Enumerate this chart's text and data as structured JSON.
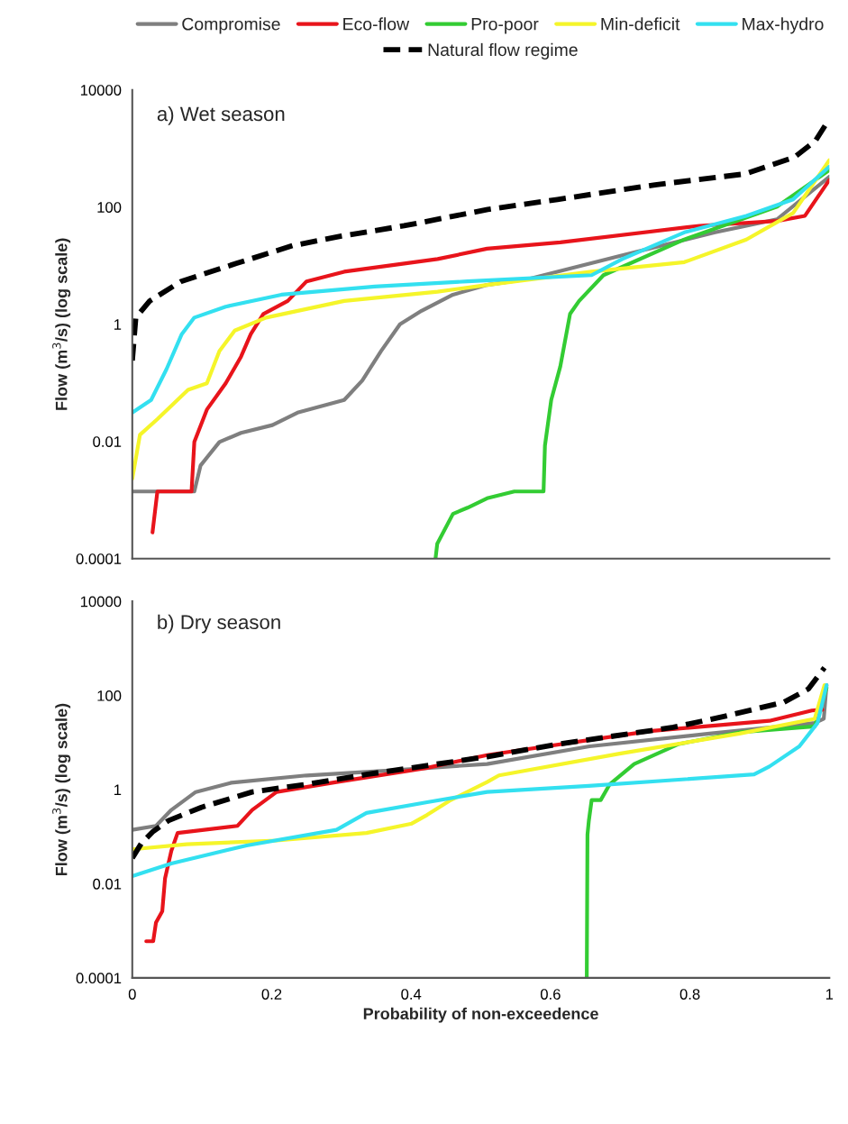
{
  "chart_data": [
    {
      "type": "line",
      "ylabel": "Flow (m$^{3}$/s) (log scale)",
      "annotations": [
        "a) Wet season"
      ],
      "log": "y",
      "xlim": [
        0,
        1
      ],
      "xticks": [
        0,
        0.2,
        0.4,
        0.6,
        0.8,
        1
      ],
      "ylim": [
        0.0001,
        10000
      ],
      "yticks": [
        0.0001,
        0.01,
        1,
        100,
        10000
      ],
      "tick_labels": "y",
      "legend": "top",
      "grid": false,
      "series": [
        {
          "name": "Compromise",
          "color": "#7f7f7f",
          "x": [
            0,
            0.089,
            0.098,
            0.125,
            0.156,
            0.201,
            0.237,
            0.304,
            0.33,
            0.357,
            0.384,
            0.415,
            0.46,
            0.509,
            0.57,
            0.703,
            0.836,
            0.925,
            1.0
          ],
          "values": [
            0.0014,
            0.0014,
            0.0039,
            0.0098,
            0.014,
            0.019,
            0.031,
            0.051,
            0.11,
            0.35,
            1.0,
            1.7,
            3.2,
            4.7,
            6.0,
            15,
            37,
            62,
            330
          ]
        },
        {
          "name": "Eco-flow",
          "color": "#e8141b",
          "x": [
            0.029,
            0.036,
            0.085,
            0.089,
            0.107,
            0.134,
            0.156,
            0.17,
            0.188,
            0.223,
            0.25,
            0.304,
            0.438,
            0.509,
            0.614,
            0.814,
            0.925,
            0.965,
            1.0
          ],
          "values": [
            0.00028,
            0.0014,
            0.0014,
            0.0098,
            0.035,
            0.098,
            0.28,
            0.68,
            1.5,
            2.5,
            5.4,
            7.9,
            13,
            19.5,
            25,
            48,
            58,
            71,
            290
          ]
        },
        {
          "name": "Pro-poor",
          "color": "#33cc33",
          "x": [
            0.435,
            0.4375,
            0.46,
            0.481,
            0.509,
            0.548,
            0.59,
            0.592,
            0.601,
            0.614,
            0.628,
            0.641,
            0.676,
            0.792,
            0.925,
            1.0
          ],
          "values": [
            0.0001,
            0.00018,
            0.00058,
            0.00074,
            0.00107,
            0.0014,
            0.0014,
            0.0085,
            0.051,
            0.19,
            1.5,
            2.5,
            6.9,
            28,
            102,
            430
          ]
        },
        {
          "name": "Min-deficit",
          "color": "#f5f52a",
          "x": [
            0,
            0.011,
            0.036,
            0.08,
            0.107,
            0.125,
            0.147,
            0.192,
            0.304,
            0.438,
            0.509,
            0.659,
            0.792,
            0.881,
            0.948,
            1.0
          ],
          "values": [
            0.0023,
            0.013,
            0.024,
            0.076,
            0.098,
            0.35,
            0.78,
            1.3,
            2.5,
            3.6,
            4.7,
            7.9,
            11.5,
            28,
            79,
            630
          ]
        },
        {
          "name": "Max-hydro",
          "color": "#33e0f0",
          "x": [
            0,
            0.027,
            0.049,
            0.071,
            0.089,
            0.134,
            0.214,
            0.348,
            0.481,
            0.659,
            0.703,
            0.792,
            0.881,
            0.948,
            1.0
          ],
          "values": [
            0.031,
            0.051,
            0.17,
            0.68,
            1.3,
            2.0,
            3.2,
            4.4,
            5.4,
            6.9,
            13,
            37,
            71,
            135,
            490
          ]
        },
        {
          "name": "Natural flow regime",
          "color": "#000000",
          "line_style": "dashed",
          "x": [
            0,
            0.005,
            0.025,
            0.07,
            0.15,
            0.23,
            0.3,
            0.39,
            0.51,
            0.61,
            0.75,
            0.88,
            0.95,
            0.98,
            1.0
          ],
          "values": [
            0.24,
            1.3,
            2.5,
            5.4,
            11,
            22,
            32,
            48,
            91,
            135,
            240,
            370,
            710,
            1350,
            3200
          ]
        }
      ]
    },
    {
      "type": "line",
      "xlabel": "Probability of non-exceedence",
      "ylabel": "Flow (m$^{3}$/s) (log scale)",
      "annotations": [
        "b) Dry season"
      ],
      "log": "y",
      "xlim": [
        0,
        1
      ],
      "xticks": [
        0,
        0.2,
        0.4,
        0.6,
        0.8,
        1
      ],
      "ylim": [
        0.0001,
        10000
      ],
      "yticks": [
        0.0001,
        0.01,
        1,
        100,
        10000
      ],
      "grid": false,
      "series": [
        {
          "color": "#7f7f7f",
          "x": [
            0,
            0.034,
            0.056,
            0.091,
            0.142,
            0.25,
            0.379,
            0.509,
            0.656,
            0.828,
            0.979,
            0.992,
            0.996
          ],
          "values": [
            0.14,
            0.17,
            0.37,
            0.89,
            1.4,
            2.0,
            2.6,
            3.5,
            8.3,
            15.5,
            26,
            32,
            166
          ]
        },
        {
          "color": "#e8141b",
          "x": [
            0.02,
            0.03,
            0.034,
            0.043,
            0.047,
            0.056,
            0.065,
            0.151,
            0.172,
            0.207,
            0.293,
            0.423,
            0.509,
            0.742,
            0.914,
            0.975,
            0.99
          ],
          "values": [
            0.0006,
            0.0006,
            0.0015,
            0.0026,
            0.013,
            0.05,
            0.12,
            0.17,
            0.37,
            0.89,
            1.45,
            2.9,
            5.4,
            17.5,
            29,
            48,
            50
          ]
        },
        {
          "color": "#33cc33",
          "x": [
            0.652,
            0.653,
            0.655,
            0.659,
            0.672,
            0.685,
            0.72,
            0.784,
            0.871,
            0.979,
            0.996
          ],
          "values": [
            0.0001,
            0.11,
            0.22,
            0.6,
            0.6,
            1.3,
            3.5,
            9.3,
            16.5,
            22,
            145
          ]
        },
        {
          "color": "#f5f52a",
          "x": [
            0,
            0.078,
            0.207,
            0.336,
            0.401,
            0.423,
            0.457,
            0.509,
            0.526,
            0.699,
            0.871,
            0.979,
            0.993
          ],
          "values": [
            0.054,
            0.069,
            0.083,
            0.12,
            0.19,
            0.29,
            0.6,
            1.45,
            2.0,
            5.8,
            15.5,
            32,
            166
          ]
        },
        {
          "color": "#33e0f0",
          "x": [
            0,
            0.056,
            0.164,
            0.293,
            0.336,
            0.423,
            0.509,
            0.655,
            0.892,
            0.914,
            0.957,
            0.983,
            0.996
          ],
          "values": [
            0.0145,
            0.027,
            0.065,
            0.14,
            0.32,
            0.54,
            0.89,
            1.2,
            2.1,
            3.1,
            8.3,
            26,
            166
          ]
        },
        {
          "color": "#000000",
          "line_style": "dashed",
          "x": [
            0,
            0.013,
            0.03,
            0.052,
            0.099,
            0.172,
            0.25,
            0.336,
            0.509,
            0.612,
            0.776,
            0.853,
            0.935,
            0.97,
            0.993
          ],
          "values": [
            0.035,
            0.072,
            0.13,
            0.22,
            0.42,
            0.89,
            1.3,
            2.1,
            5.0,
            9.3,
            21,
            37,
            72,
            138,
            390
          ]
        }
      ]
    }
  ]
}
